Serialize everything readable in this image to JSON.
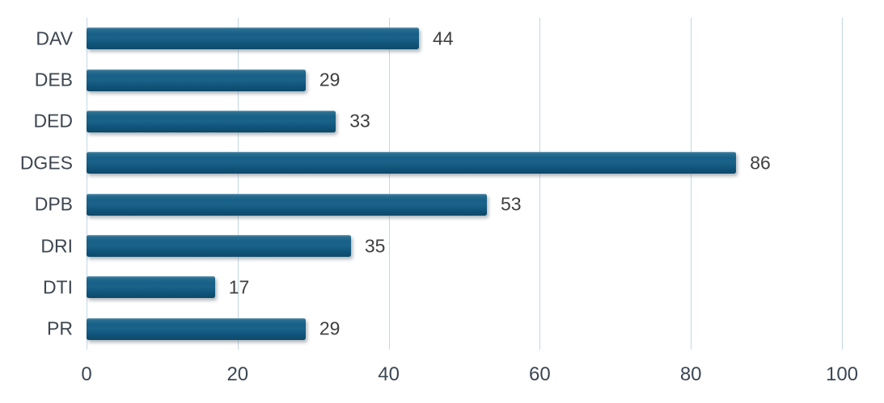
{
  "chart_data": {
    "type": "bar",
    "orientation": "horizontal",
    "title": "",
    "xlabel": "",
    "ylabel": "",
    "categories": [
      "DAV",
      "DEB",
      "DED",
      "DGES",
      "DPB",
      "DRI",
      "DTI",
      "PR"
    ],
    "values": [
      44,
      29,
      33,
      86,
      53,
      35,
      17,
      29
    ],
    "xlim": [
      0,
      100
    ],
    "x_ticks": [
      0,
      20,
      40,
      60,
      80,
      100
    ],
    "grid": "vertical-only",
    "legend": "none",
    "data_labels": true,
    "colors": {
      "bar": "#155E82",
      "bar_gradient_top": "#7BA6BC",
      "bar_gradient_bottom": "#0D4A69",
      "gridline": "#C3D7E5",
      "category_label": "#3D4650",
      "value_label": "#404040",
      "tick_label": "#3B4754",
      "background": "#FFFFFF"
    }
  }
}
